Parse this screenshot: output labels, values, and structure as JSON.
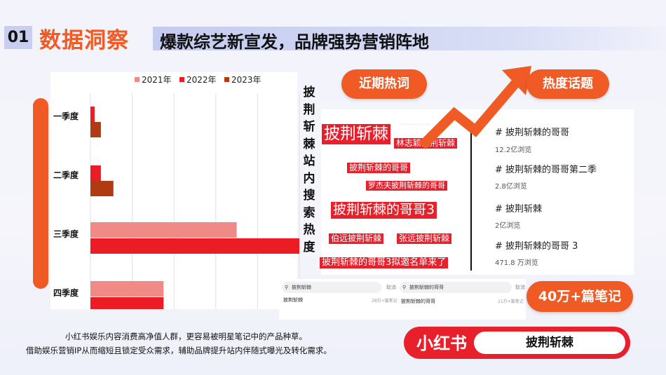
{
  "header": {
    "number": "01",
    "title": "数据洞察",
    "subtitle": "爆款综艺新宣发，品牌强势营销阵地"
  },
  "chart_data": {
    "type": "bar",
    "orientation": "horizontal",
    "categories": [
      "一季度",
      "二季度",
      "三季度",
      "四季度"
    ],
    "series": [
      {
        "name": "2021年",
        "color": "#f08a86",
        "values": [
          0,
          0,
          70,
          35
        ]
      },
      {
        "name": "2022年",
        "color": "#ec1c24",
        "values": [
          2,
          5,
          100,
          35
        ]
      },
      {
        "name": "2023年",
        "color": "#b03a12",
        "values": [
          5,
          11,
          null,
          null
        ]
      }
    ],
    "xlim": [
      0,
      100
    ],
    "grid": true,
    "legend": "top",
    "title": "披荆斩棘站内搜索热度"
  },
  "hot_words": {
    "label": "近期热词",
    "tags": [
      "披荆斩棘",
      "林志颖披荆斩棘",
      "披荆斩棘的哥哥",
      "罗杰夫披荆斩棘的哥哥",
      "披荆斩棘的哥哥3",
      "伯远披荆斩棘",
      "张远披荆斩棘",
      "披荆斩棘的哥哥3拟邀名单来了"
    ]
  },
  "hot_topics": {
    "label": "热度话题",
    "items": [
      {
        "title": "# 披荆斩棘的哥哥",
        "views": "12.2亿浏览"
      },
      {
        "title": "# 披荆斩棘的哥哥第二季",
        "views": "2.8亿浏览"
      },
      {
        "title": "# 披荆斩棘",
        "views": "2亿浏览"
      },
      {
        "title": "# 披荆斩棘的哥哥 3",
        "views": "471.8 万浏览"
      }
    ]
  },
  "notes_badge": "40万+篇笔记",
  "search_boxes": [
    {
      "query": "披荆斩棘",
      "cancel": "取消",
      "result": "披荆斩棘",
      "count": "28万+篇笔记"
    },
    {
      "query": "披荆斩棘的哥哥",
      "cancel": "取消",
      "result": "披荆斩棘的哥哥",
      "count": "11万+篇笔记"
    }
  ],
  "footer": {
    "line1": "小红书娱乐内容消费高净值人群，更容易被明星笔记中的产品种草。",
    "line2": "借助娱乐营销IP从而缩短且锁定受众需求，辅助品牌提升站内伴随式曝光及转化需求。"
  },
  "brand": {
    "logo": "小红书",
    "keyword": "披荆斩棘"
  }
}
